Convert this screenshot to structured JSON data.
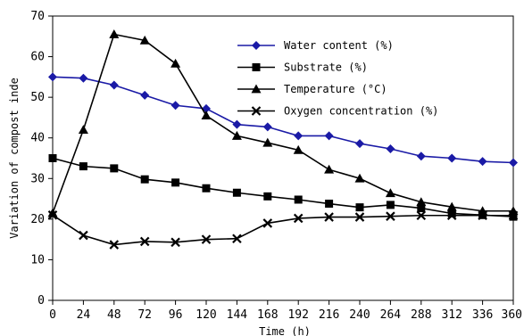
{
  "chart_data": {
    "type": "line",
    "xlabel": "Time (h)",
    "ylabel": "Variation of compost inde",
    "x": [
      0,
      24,
      48,
      72,
      96,
      120,
      144,
      168,
      192,
      216,
      240,
      264,
      288,
      312,
      336,
      360
    ],
    "xlim": [
      0,
      360
    ],
    "ylim": [
      0,
      70
    ],
    "yticks": [
      0,
      10,
      20,
      30,
      40,
      50,
      60,
      70
    ],
    "xticks": [
      0,
      24,
      48,
      72,
      96,
      120,
      144,
      168,
      192,
      216,
      240,
      264,
      288,
      312,
      336,
      360
    ],
    "grid": false,
    "legend_position": "upper-right",
    "series": [
      {
        "name": "Water content (%)",
        "color": "#1a1aa6",
        "marker": "diamond",
        "values": [
          55,
          54.7,
          53,
          50.5,
          48,
          47.2,
          43.3,
          42.7,
          40.5,
          40.5,
          38.6,
          37.3,
          35.5,
          35,
          34.2,
          33.9
        ]
      },
      {
        "name": "Substrate (%)",
        "color": "#000000",
        "marker": "square",
        "values": [
          35,
          33,
          32.5,
          29.8,
          29,
          27.6,
          26.5,
          25.6,
          24.8,
          23.8,
          22.9,
          23.5,
          22.7,
          21.4,
          21,
          20.6
        ]
      },
      {
        "name": "Temperature (°C)",
        "color": "#000000",
        "marker": "triangle",
        "values": [
          21.5,
          42,
          65.5,
          64,
          58.3,
          45.5,
          40.5,
          38.8,
          37,
          32.2,
          30,
          26.4,
          24.2,
          23,
          22,
          22
        ]
      },
      {
        "name": "Oxygen concentration (%)",
        "color": "#000000",
        "marker": "x",
        "values": [
          21,
          16,
          13.7,
          14.5,
          14.3,
          15,
          15.2,
          19,
          20.2,
          20.5,
          20.5,
          20.7,
          20.9,
          20.9,
          20.9,
          20.9
        ]
      }
    ]
  }
}
